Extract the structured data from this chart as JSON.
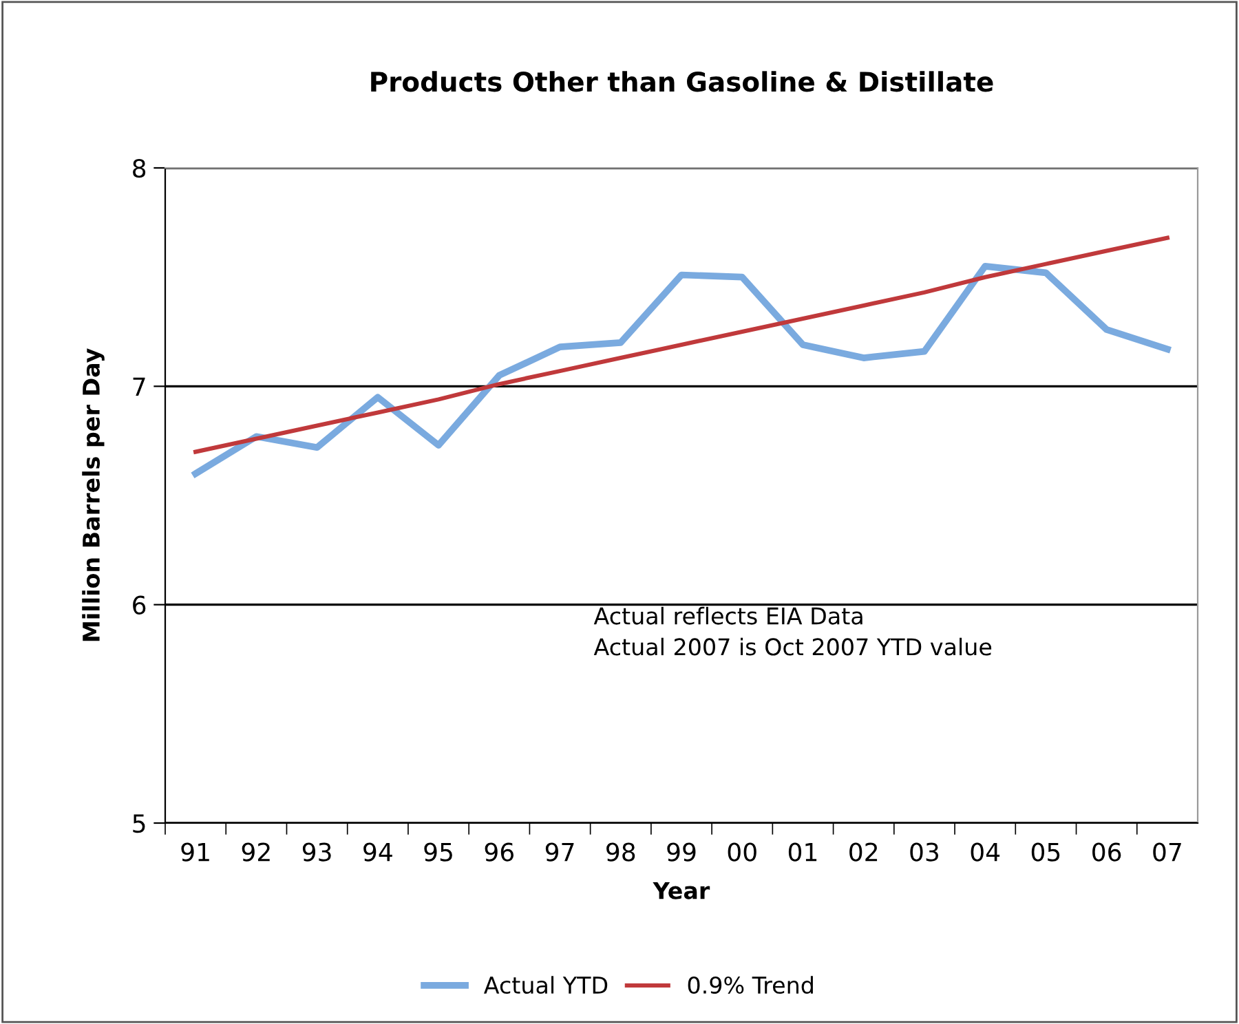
{
  "chart_data": {
    "type": "line",
    "title": "Products Other than Gasoline & Distillate",
    "xlabel": "Year",
    "ylabel": "Million Barrels per Day",
    "categories": [
      "91",
      "92",
      "93",
      "94",
      "95",
      "96",
      "97",
      "98",
      "99",
      "00",
      "01",
      "02",
      "03",
      "04",
      "05",
      "06",
      "07"
    ],
    "series": [
      {
        "name": "Actual YTD",
        "color": "#7aaadf",
        "values": [
          6.6,
          6.77,
          6.72,
          6.95,
          6.73,
          7.05,
          7.18,
          7.2,
          7.51,
          7.5,
          7.19,
          7.13,
          7.16,
          7.55,
          7.52,
          7.26,
          7.17
        ]
      },
      {
        "name": "0.9% Trend",
        "color": "#c0393b",
        "values": [
          6.7,
          6.76,
          6.82,
          6.88,
          6.94,
          7.01,
          7.07,
          7.13,
          7.19,
          7.25,
          7.31,
          7.37,
          7.43,
          7.5,
          7.56,
          7.62,
          7.68
        ]
      }
    ],
    "ylim": [
      5,
      8
    ],
    "yticks": [
      5,
      6,
      7,
      8
    ],
    "grid": "y",
    "legend": "bottom",
    "marker": "none",
    "line_style": "solid",
    "annotations": [
      "Actual reflects EIA Data\nActual 2007 is Oct 2007 YTD value"
    ]
  }
}
